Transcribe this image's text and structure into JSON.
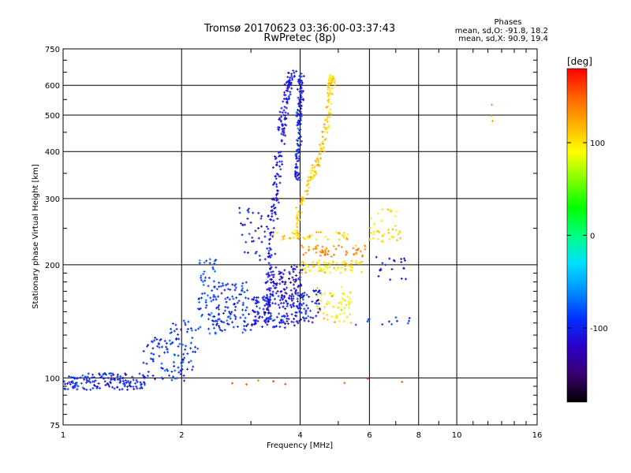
{
  "chart_data": {
    "type": "scatter",
    "title": "Tromsø 20170623 03:36:00-03:37:43",
    "subtitle": "RwPretec (8p)",
    "xlabel": "Frequency [MHz]",
    "ylabel": "Stationary phase Virtual Height [km]",
    "x_scale": "log",
    "y_scale": "log",
    "xlim": [
      1,
      16
    ],
    "ylim": [
      75,
      750
    ],
    "x_ticks": [
      1,
      2,
      4,
      6,
      8,
      10,
      16
    ],
    "x_tick_labels": [
      "1",
      "2",
      "4",
      "6",
      "8",
      "10",
      "16"
    ],
    "y_ticks": [
      75,
      100,
      200,
      300,
      400,
      500,
      600,
      750
    ],
    "y_tick_labels": [
      "75",
      "100",
      "200",
      "300",
      "400",
      "500",
      "600",
      "750"
    ],
    "grid": true,
    "phase_info": {
      "heading": "Phases",
      "line_o": "mean, sd,O: -91.8, 18.2",
      "line_x": "mean, sd,X:  90.9, 19.4"
    },
    "colorbar": {
      "label": "[deg]",
      "range": [
        -180,
        180
      ],
      "ticks": [
        100,
        0,
        -100
      ],
      "tick_labels": [
        "100",
        "0",
        "-100"
      ],
      "colormap": [
        "#000000",
        "#3a0070",
        "#2a00c8",
        "#0030ff",
        "#0090ff",
        "#00e0ff",
        "#00ff80",
        "#00ff00",
        "#80ff00",
        "#ffff00",
        "#ffb000",
        "#ff6000",
        "#ff0000"
      ]
    },
    "series": [
      {
        "type": "band",
        "x_range": [
          1.0,
          1.62
        ],
        "y_range": [
          93,
          103
        ],
        "n": 150,
        "phase": -100
      },
      {
        "type": "band",
        "x_range": [
          1.6,
          1.85
        ],
        "y_range": [
          99,
          128
        ],
        "n": 45,
        "phase": -95
      },
      {
        "type": "band",
        "x_range": [
          1.85,
          2.2
        ],
        "y_range": [
          98,
          145
        ],
        "n": 70,
        "phase": -90
      },
      {
        "type": "band",
        "x_range": [
          2.2,
          2.45
        ],
        "y_range": [
          130,
          210
        ],
        "n": 60,
        "phase": -85
      },
      {
        "type": "band",
        "x_range": [
          2.4,
          3.0
        ],
        "y_range": [
          132,
          180
        ],
        "n": 110,
        "phase": -95
      },
      {
        "type": "band",
        "x_range": [
          2.8,
          3.4
        ],
        "y_range": [
          205,
          285
        ],
        "n": 45,
        "phase": -110
      },
      {
        "type": "curve",
        "points": [
          [
            3.3,
            140
          ],
          [
            3.32,
            170
          ],
          [
            3.36,
            210
          ],
          [
            3.42,
            270
          ],
          [
            3.5,
            340
          ],
          [
            3.58,
            430
          ],
          [
            3.66,
            520
          ],
          [
            3.74,
            600
          ],
          [
            3.8,
            650
          ]
        ],
        "spread": 0.012,
        "n": 230,
        "phase": -110
      },
      {
        "type": "curve",
        "points": [
          [
            3.92,
            330
          ],
          [
            3.95,
            400
          ],
          [
            3.98,
            480
          ],
          [
            4.0,
            560
          ],
          [
            4.02,
            640
          ]
        ],
        "spread": 0.009,
        "n": 120,
        "phase": -100
      },
      {
        "type": "curve",
        "points": [
          [
            3.9,
            235
          ],
          [
            3.98,
            280
          ],
          [
            4.2,
            330
          ],
          [
            4.45,
            380
          ],
          [
            4.62,
            440
          ],
          [
            4.72,
            520
          ],
          [
            4.78,
            600
          ],
          [
            4.82,
            640
          ]
        ],
        "spread": 0.01,
        "n": 170,
        "phase": 108
      },
      {
        "type": "band",
        "x_range": [
          3.0,
          4.0
        ],
        "y_range": [
          136,
          165
        ],
        "n": 140,
        "phase": -105
      },
      {
        "type": "band",
        "x_range": [
          3.4,
          4.1
        ],
        "y_range": [
          163,
          200
        ],
        "n": 90,
        "phase": -115
      },
      {
        "type": "band",
        "x_range": [
          3.9,
          4.5
        ],
        "y_range": [
          140,
          172
        ],
        "n": 60,
        "phase": -100
      },
      {
        "type": "band",
        "x_range": [
          4.4,
          5.4
        ],
        "y_range": [
          140,
          175
        ],
        "n": 60,
        "phase": 95
      },
      {
        "type": "band",
        "x_range": [
          4.0,
          5.8
        ],
        "y_range": [
          190,
          205
        ],
        "n": 70,
        "phase": 100
      },
      {
        "type": "band",
        "x_range": [
          4.0,
          5.9
        ],
        "y_range": [
          210,
          225
        ],
        "n": 55,
        "phase": 130
      },
      {
        "type": "band",
        "x_range": [
          3.4,
          5.3
        ],
        "y_range": [
          233,
          245
        ],
        "n": 40,
        "phase": 110
      },
      {
        "type": "band",
        "x_range": [
          6.0,
          7.2
        ],
        "y_range": [
          228,
          282
        ],
        "n": 40,
        "phase": 100
      },
      {
        "type": "band",
        "x_range": [
          6.2,
          7.5
        ],
        "y_range": [
          180,
          212
        ],
        "n": 20,
        "phase": -110
      },
      {
        "type": "band",
        "x_range": [
          5.5,
          7.6
        ],
        "y_range": [
          138,
          145
        ],
        "n": 12,
        "phase": -90
      },
      {
        "type": "band",
        "x_range": [
          2.5,
          8.5
        ],
        "y_range": [
          96,
          100
        ],
        "n": 8,
        "phase": 150
      },
      {
        "type": "band",
        "x_range": [
          11.8,
          12.4
        ],
        "y_range": [
          470,
          540
        ],
        "n": 3,
        "phase": 130
      }
    ]
  }
}
